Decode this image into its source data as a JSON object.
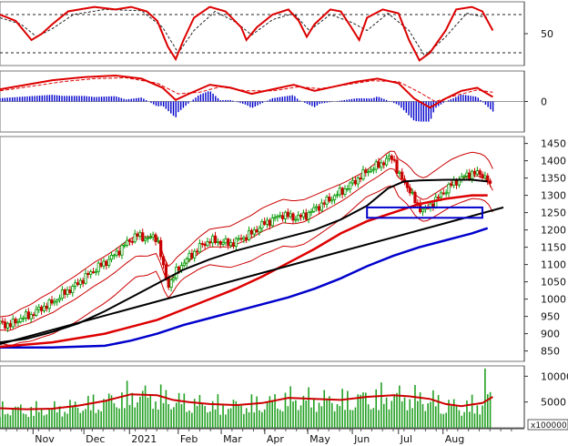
{
  "chart_data": {
    "type": "line",
    "panels": {
      "oscillator": {
        "y_ticks": [
          50
        ],
        "ylim": [
          0,
          100
        ],
        "dashed_levels": [
          80,
          20
        ]
      },
      "macd": {
        "y_ticks": [
          0
        ],
        "ylim": [
          -1,
          1
        ]
      },
      "price": {
        "y_ticks": [
          850,
          900,
          950,
          1000,
          1050,
          1100,
          1150,
          1200,
          1250,
          1300,
          1350,
          1400,
          1450
        ],
        "ylim": [
          820,
          1470
        ],
        "highlight_zone": {
          "x0": 0.7,
          "x1": 0.92,
          "y_low": 1235,
          "y_high": 1265
        }
      },
      "volume": {
        "y_ticks": [
          5000,
          10000
        ],
        "ylim": [
          0,
          12000
        ],
        "unit_label": "x100000"
      }
    },
    "x_labels": [
      "Nov",
      "Dec",
      "2021",
      "Feb",
      "Mar",
      "Apr",
      "May",
      "Jun",
      "Jul",
      "Aug"
    ],
    "x_label_positions": [
      0.063,
      0.16,
      0.247,
      0.34,
      0.422,
      0.505,
      0.587,
      0.672,
      0.76,
      0.845
    ],
    "price_series": {
      "close_points": [
        [
          0,
          930
        ],
        [
          0.02,
          925
        ],
        [
          0.04,
          945
        ],
        [
          0.06,
          955
        ],
        [
          0.08,
          975
        ],
        [
          0.1,
          990
        ],
        [
          0.12,
          1015
        ],
        [
          0.14,
          1035
        ],
        [
          0.16,
          1060
        ],
        [
          0.18,
          1085
        ],
        [
          0.2,
          1105
        ],
        [
          0.22,
          1130
        ],
        [
          0.24,
          1160
        ],
        [
          0.26,
          1185
        ],
        [
          0.28,
          1175
        ],
        [
          0.3,
          1180
        ],
        [
          0.31,
          1100
        ],
        [
          0.32,
          1040
        ],
        [
          0.33,
          1060
        ],
        [
          0.34,
          1090
        ],
        [
          0.36,
          1120
        ],
        [
          0.38,
          1150
        ],
        [
          0.4,
          1170
        ],
        [
          0.42,
          1165
        ],
        [
          0.44,
          1160
        ],
        [
          0.46,
          1175
        ],
        [
          0.48,
          1190
        ],
        [
          0.5,
          1215
        ],
        [
          0.52,
          1230
        ],
        [
          0.54,
          1245
        ],
        [
          0.56,
          1235
        ],
        [
          0.58,
          1240
        ],
        [
          0.6,
          1260
        ],
        [
          0.62,
          1280
        ],
        [
          0.64,
          1300
        ],
        [
          0.66,
          1320
        ],
        [
          0.68,
          1345
        ],
        [
          0.7,
          1370
        ],
        [
          0.72,
          1385
        ],
        [
          0.74,
          1405
        ],
        [
          0.75,
          1410
        ],
        [
          0.76,
          1360
        ],
        [
          0.78,
          1320
        ],
        [
          0.79,
          1285
        ],
        [
          0.8,
          1265
        ],
        [
          0.81,
          1255
        ],
        [
          0.82,
          1270
        ],
        [
          0.84,
          1300
        ],
        [
          0.86,
          1330
        ],
        [
          0.88,
          1350
        ],
        [
          0.9,
          1365
        ],
        [
          0.92,
          1360
        ],
        [
          0.93,
          1345
        ],
        [
          0.94,
          1300
        ]
      ],
      "sma_black_points": [
        [
          0,
          875
        ],
        [
          0.05,
          885
        ],
        [
          0.1,
          905
        ],
        [
          0.15,
          930
        ],
        [
          0.2,
          965
        ],
        [
          0.25,
          1005
        ],
        [
          0.3,
          1045
        ],
        [
          0.35,
          1085
        ],
        [
          0.4,
          1115
        ],
        [
          0.45,
          1140
        ],
        [
          0.5,
          1160
        ],
        [
          0.55,
          1180
        ],
        [
          0.6,
          1200
        ],
        [
          0.65,
          1230
        ],
        [
          0.7,
          1270
        ],
        [
          0.74,
          1320
        ],
        [
          0.77,
          1340
        ],
        [
          0.8,
          1343
        ],
        [
          0.85,
          1345
        ],
        [
          0.9,
          1345
        ],
        [
          0.93,
          1340
        ]
      ],
      "sma_red_points": [
        [
          0,
          862
        ],
        [
          0.1,
          875
        ],
        [
          0.2,
          900
        ],
        [
          0.3,
          940
        ],
        [
          0.35,
          970
        ],
        [
          0.4,
          1000
        ],
        [
          0.45,
          1030
        ],
        [
          0.5,
          1065
        ],
        [
          0.55,
          1105
        ],
        [
          0.6,
          1145
        ],
        [
          0.65,
          1190
        ],
        [
          0.7,
          1225
        ],
        [
          0.75,
          1250
        ],
        [
          0.8,
          1275
        ],
        [
          0.85,
          1290
        ],
        [
          0.9,
          1300
        ],
        [
          0.93,
          1300
        ]
      ],
      "sma_blue_points": [
        [
          0,
          860
        ],
        [
          0.1,
          860
        ],
        [
          0.2,
          865
        ],
        [
          0.25,
          880
        ],
        [
          0.3,
          900
        ],
        [
          0.35,
          925
        ],
        [
          0.4,
          945
        ],
        [
          0.45,
          965
        ],
        [
          0.5,
          985
        ],
        [
          0.55,
          1005
        ],
        [
          0.6,
          1030
        ],
        [
          0.65,
          1060
        ],
        [
          0.7,
          1095
        ],
        [
          0.75,
          1125
        ],
        [
          0.8,
          1150
        ],
        [
          0.85,
          1170
        ],
        [
          0.9,
          1190
        ],
        [
          0.93,
          1205
        ]
      ],
      "trendline_points": [
        [
          0,
          870
        ],
        [
          0.96,
          1265
        ]
      ]
    },
    "oscillator_series": {
      "line_points": [
        [
          0,
          80
        ],
        [
          0.03,
          70
        ],
        [
          0.06,
          40
        ],
        [
          0.08,
          50
        ],
        [
          0.1,
          65
        ],
        [
          0.13,
          85
        ],
        [
          0.18,
          92
        ],
        [
          0.22,
          88
        ],
        [
          0.25,
          92
        ],
        [
          0.28,
          85
        ],
        [
          0.3,
          70
        ],
        [
          0.32,
          30
        ],
        [
          0.335,
          10
        ],
        [
          0.35,
          40
        ],
        [
          0.37,
          75
        ],
        [
          0.4,
          92
        ],
        [
          0.43,
          85
        ],
        [
          0.46,
          60
        ],
        [
          0.47,
          40
        ],
        [
          0.49,
          60
        ],
        [
          0.52,
          80
        ],
        [
          0.55,
          88
        ],
        [
          0.57,
          70
        ],
        [
          0.585,
          45
        ],
        [
          0.6,
          65
        ],
        [
          0.63,
          88
        ],
        [
          0.65,
          85
        ],
        [
          0.67,
          60
        ],
        [
          0.685,
          40
        ],
        [
          0.7,
          75
        ],
        [
          0.73,
          88
        ],
        [
          0.76,
          82
        ],
        [
          0.78,
          40
        ],
        [
          0.8,
          8
        ],
        [
          0.82,
          20
        ],
        [
          0.85,
          55
        ],
        [
          0.87,
          88
        ],
        [
          0.9,
          92
        ],
        [
          0.92,
          85
        ],
        [
          0.94,
          55
        ]
      ],
      "signal_points": [
        [
          0,
          75
        ],
        [
          0.04,
          65
        ],
        [
          0.07,
          45
        ],
        [
          0.1,
          58
        ],
        [
          0.14,
          80
        ],
        [
          0.2,
          88
        ],
        [
          0.27,
          86
        ],
        [
          0.31,
          60
        ],
        [
          0.34,
          20
        ],
        [
          0.37,
          55
        ],
        [
          0.41,
          85
        ],
        [
          0.45,
          68
        ],
        [
          0.48,
          48
        ],
        [
          0.52,
          72
        ],
        [
          0.56,
          82
        ],
        [
          0.59,
          55
        ],
        [
          0.63,
          80
        ],
        [
          0.67,
          68
        ],
        [
          0.7,
          55
        ],
        [
          0.74,
          82
        ],
        [
          0.78,
          55
        ],
        [
          0.81,
          15
        ],
        [
          0.85,
          45
        ],
        [
          0.89,
          82
        ],
        [
          0.93,
          75
        ]
      ]
    },
    "macd_series": {
      "macd_points": [
        [
          0,
          0.4
        ],
        [
          0.05,
          0.55
        ],
        [
          0.1,
          0.7
        ],
        [
          0.16,
          0.8
        ],
        [
          0.22,
          0.85
        ],
        [
          0.27,
          0.75
        ],
        [
          0.31,
          0.45
        ],
        [
          0.335,
          0.05
        ],
        [
          0.36,
          0.25
        ],
        [
          0.4,
          0.55
        ],
        [
          0.44,
          0.45
        ],
        [
          0.48,
          0.25
        ],
        [
          0.52,
          0.4
        ],
        [
          0.56,
          0.55
        ],
        [
          0.6,
          0.35
        ],
        [
          0.64,
          0.5
        ],
        [
          0.68,
          0.65
        ],
        [
          0.72,
          0.75
        ],
        [
          0.76,
          0.6
        ],
        [
          0.79,
          0.1
        ],
        [
          0.82,
          -0.2
        ],
        [
          0.85,
          0.1
        ],
        [
          0.88,
          0.35
        ],
        [
          0.91,
          0.45
        ],
        [
          0.94,
          0.15
        ]
      ],
      "signal_points": [
        [
          0,
          0.35
        ],
        [
          0.06,
          0.5
        ],
        [
          0.12,
          0.65
        ],
        [
          0.18,
          0.75
        ],
        [
          0.24,
          0.78
        ],
        [
          0.3,
          0.6
        ],
        [
          0.34,
          0.25
        ],
        [
          0.38,
          0.3
        ],
        [
          0.42,
          0.48
        ],
        [
          0.47,
          0.35
        ],
        [
          0.52,
          0.35
        ],
        [
          0.57,
          0.48
        ],
        [
          0.61,
          0.42
        ],
        [
          0.66,
          0.55
        ],
        [
          0.71,
          0.68
        ],
        [
          0.76,
          0.65
        ],
        [
          0.8,
          0.3
        ],
        [
          0.83,
          0.0
        ],
        [
          0.87,
          0.2
        ],
        [
          0.91,
          0.38
        ],
        [
          0.94,
          0.3
        ]
      ]
    },
    "volume_series": {
      "avg_points": [
        [
          0,
          3800
        ],
        [
          0.05,
          3600
        ],
        [
          0.1,
          3700
        ],
        [
          0.15,
          4300
        ],
        [
          0.2,
          5200
        ],
        [
          0.25,
          6500
        ],
        [
          0.3,
          6300
        ],
        [
          0.33,
          5400
        ],
        [
          0.36,
          5000
        ],
        [
          0.4,
          4600
        ],
        [
          0.45,
          4400
        ],
        [
          0.5,
          4800
        ],
        [
          0.55,
          5800
        ],
        [
          0.6,
          5600
        ],
        [
          0.65,
          5400
        ],
        [
          0.7,
          6000
        ],
        [
          0.75,
          6300
        ],
        [
          0.78,
          6100
        ],
        [
          0.82,
          5600
        ],
        [
          0.85,
          4600
        ],
        [
          0.88,
          4200
        ],
        [
          0.92,
          4800
        ],
        [
          0.94,
          6000
        ]
      ]
    },
    "colors": {
      "price_up": "#009900",
      "price_down": "#cc0000",
      "bollinger": "#cc0000",
      "sma_black": "#000000",
      "sma_red": "#dd0000",
      "sma_blue": "#0000cc",
      "zone": "#0000cc",
      "volume": "#22a022",
      "volume_avg": "#cc0000",
      "macd_hist": "#0000cc"
    }
  }
}
